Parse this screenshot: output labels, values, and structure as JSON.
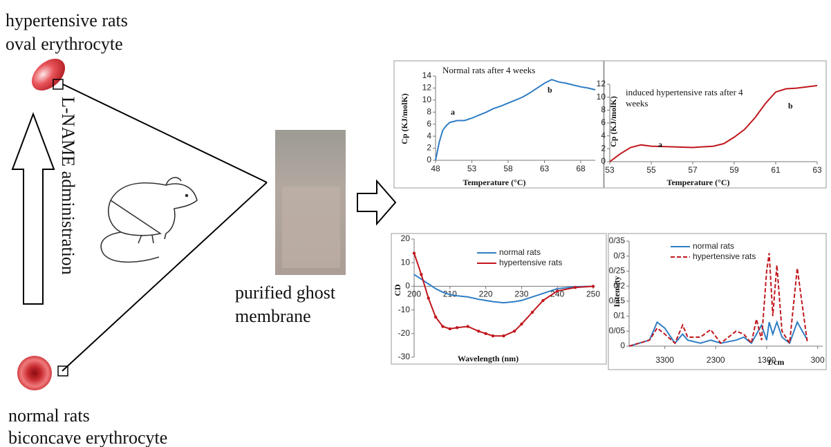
{
  "diagram": {
    "top_label": [
      "hypertensive rats",
      "oval erythrocyte"
    ],
    "bottom_label": [
      "normal rats",
      "biconcave erythrocyte"
    ],
    "arrow_label": "L-NAME administration",
    "membrane_label": [
      "purified ghost",
      "membrane"
    ]
  },
  "chart_data": [
    {
      "type": "line",
      "title": "Normal rats after 4 weeks",
      "x_label": "Temperature (°C)",
      "y_label": "Cp (KJ/molK)",
      "annotations": [
        "a",
        "b"
      ],
      "x": [
        48,
        48.5,
        49,
        49.5,
        50,
        51,
        52,
        53,
        54,
        55,
        56,
        57,
        58,
        59,
        60,
        61,
        62,
        63,
        64,
        65,
        66,
        67,
        68,
        69,
        70
      ],
      "series": [
        {
          "color": "#2e7dc4",
          "values": [
            0,
            3,
            5,
            5.8,
            6.3,
            6.6,
            6.6,
            7,
            7.5,
            8,
            8.6,
            9,
            9.5,
            10,
            10.5,
            11.2,
            12,
            12.8,
            13.4,
            13,
            12.8,
            12.5,
            12.2,
            12,
            11.7
          ]
        }
      ],
      "xlim": [
        48,
        70
      ],
      "ylim": [
        0,
        14
      ],
      "xticks": [
        48,
        53,
        58,
        63,
        68
      ],
      "yticks": [
        0,
        2,
        4,
        6,
        8,
        10,
        12,
        14
      ]
    },
    {
      "type": "line",
      "title": "induced hypertensive rats after 4 weeks",
      "x_label": "Temperature (°C)",
      "y_label": "Cp (KJ/molK)",
      "annotations": [
        "a",
        "b"
      ],
      "x": [
        53,
        53.5,
        54,
        54.5,
        55,
        56,
        57,
        58,
        58.5,
        59,
        59.5,
        60,
        60.5,
        61,
        61.5,
        62,
        62.5,
        63
      ],
      "series": [
        {
          "color": "#c0161c",
          "values": [
            0,
            1.2,
            2.2,
            2.6,
            2.4,
            2.3,
            2.2,
            2.4,
            2.8,
            3.8,
            5,
            6.8,
            9,
            10.8,
            11.3,
            11.4,
            11.6,
            11.8
          ]
        }
      ],
      "xlim": [
        53,
        63
      ],
      "ylim": [
        0,
        12
      ],
      "xticks": [
        53,
        55,
        57,
        59,
        61,
        63
      ],
      "yticks": [
        0,
        2,
        4,
        6,
        8,
        10,
        12
      ]
    },
    {
      "type": "line",
      "x_label": "Wavelength (nm)",
      "y_label": "CD",
      "x": [
        200,
        202,
        204,
        206,
        208,
        210,
        212,
        215,
        218,
        220,
        222,
        225,
        228,
        230,
        233,
        236,
        240,
        245,
        250
      ],
      "series": [
        {
          "name": "normal rats",
          "color": "#2e7dc4",
          "values": [
            5,
            3,
            1,
            -1,
            -2.5,
            -3.5,
            -4,
            -4.5,
            -5.5,
            -6,
            -6.5,
            -7,
            -6.5,
            -6,
            -4.5,
            -3,
            -1,
            -0.2,
            0
          ]
        },
        {
          "name": "hypertensive rats",
          "color": "#c0161c",
          "marker": "circle",
          "values": [
            14,
            5,
            -5,
            -13,
            -17,
            -18,
            -17.5,
            -17,
            -19,
            -20,
            -21,
            -21,
            -19,
            -16,
            -11,
            -6,
            -2,
            -0.5,
            0
          ]
        }
      ],
      "xlim": [
        200,
        250
      ],
      "ylim": [
        -30,
        20
      ],
      "xticks": [
        200,
        210,
        220,
        230,
        240,
        250
      ],
      "yticks": [
        -30,
        -20,
        -10,
        0,
        10,
        20
      ]
    },
    {
      "type": "line",
      "x_label": "1/cm",
      "y_label": "Intensity",
      "x": [
        4000,
        3600,
        3450,
        3300,
        3100,
        2950,
        2850,
        2600,
        2400,
        2200,
        1900,
        1750,
        1600,
        1500,
        1400,
        1300,
        1250,
        1180,
        1100,
        1000,
        850,
        700,
        500
      ],
      "series": [
        {
          "name": "normal rats",
          "color": "#2e7dc4",
          "values": [
            0,
            0.02,
            0.08,
            0.06,
            0.01,
            0.04,
            0.02,
            0.01,
            0.02,
            0.01,
            0.02,
            0.03,
            0.01,
            0.04,
            0.07,
            0.02,
            0.08,
            0.04,
            0.08,
            0.03,
            0.01,
            0.08,
            0.02
          ]
        },
        {
          "name": "hypertensive rats",
          "color": "#c0161c",
          "dash": "dashed",
          "values": [
            0,
            0.02,
            0.06,
            0.04,
            0.01,
            0.07,
            0.03,
            0.03,
            0.055,
            0.01,
            0.05,
            0.04,
            0.01,
            0.09,
            0.02,
            0.25,
            0.31,
            0.1,
            0.27,
            0.05,
            0.01,
            0.26,
            0.01
          ]
        }
      ],
      "xlim": [
        4000,
        200
      ],
      "ylim": [
        0,
        0.35
      ],
      "xticks": [
        3300,
        2300,
        1300,
        300
      ],
      "yticks": [
        0,
        {
          "value": 0.05,
          "label": "0/05"
        },
        {
          "value": 0.1,
          "label": "0/1"
        },
        {
          "value": 0.15,
          "label": "0/15"
        },
        {
          "value": 0.2,
          "label": "0/2"
        },
        {
          "value": 0.25,
          "label": "0/25"
        },
        {
          "value": 0.3,
          "label": "0/3"
        },
        {
          "value": 0.35,
          "label": "0/35"
        }
      ]
    }
  ]
}
